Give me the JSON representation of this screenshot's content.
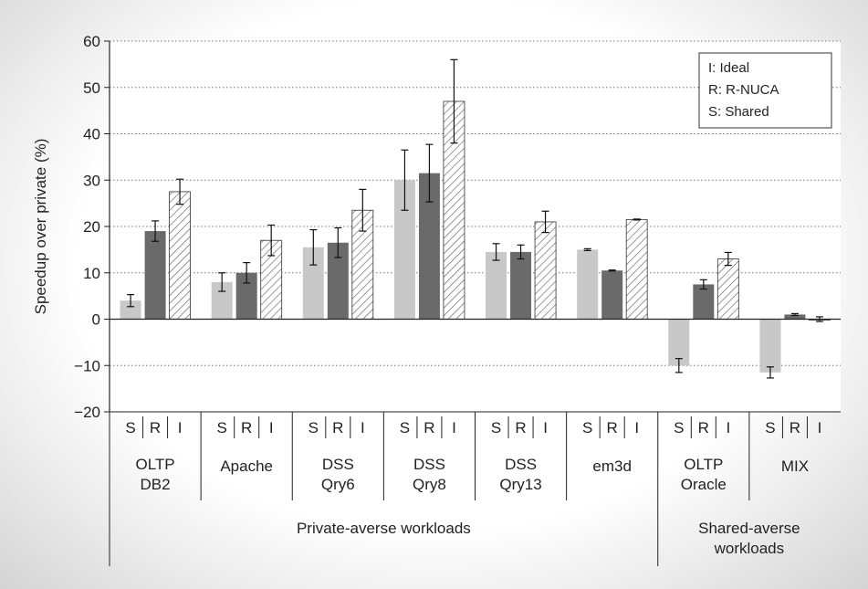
{
  "chart_data": {
    "type": "bar",
    "ylabel": "Speedup over private (%)",
    "ylim": [
      -20,
      60
    ],
    "yticks": [
      -20,
      -10,
      0,
      10,
      20,
      30,
      40,
      50,
      60
    ],
    "grid": true,
    "legend_position": "top-right",
    "legend": [
      "I: Ideal",
      "R: R-NUCA",
      "S: Shared"
    ],
    "bar_letters": [
      "S",
      "R",
      "I"
    ],
    "groups": [
      {
        "lines": [
          "OLTP",
          "DB2"
        ]
      },
      {
        "lines": [
          "Apache"
        ]
      },
      {
        "lines": [
          "DSS",
          "Qry6"
        ]
      },
      {
        "lines": [
          "DSS",
          "Qry8"
        ]
      },
      {
        "lines": [
          "DSS",
          "Qry13"
        ]
      },
      {
        "lines": [
          "em3d"
        ]
      },
      {
        "lines": [
          "OLTP",
          "Oracle"
        ]
      },
      {
        "lines": [
          "MIX"
        ]
      }
    ],
    "categories_super": [
      {
        "label": "Private-averse workloads",
        "lines": [
          "Private-averse workloads"
        ],
        "span": [
          0,
          5
        ]
      },
      {
        "label": "Shared-averse workloads",
        "lines": [
          "Shared-averse",
          "workloads"
        ],
        "span": [
          6,
          7
        ]
      }
    ],
    "series": [
      {
        "name": "Shared",
        "letter": "S",
        "color": "#c8c8c8",
        "pattern": "solid",
        "values": [
          4,
          8,
          15.5,
          30,
          14.5,
          15,
          -10,
          -11.5
        ],
        "error": [
          1.3,
          2,
          3.8,
          6.5,
          1.8,
          0.2,
          1.5,
          1.2
        ]
      },
      {
        "name": "R-NUCA",
        "letter": "R",
        "color": "#6a6a6a",
        "pattern": "solid",
        "values": [
          19,
          10,
          16.5,
          31.5,
          14.5,
          10.5,
          7.5,
          1
        ],
        "error": [
          2.2,
          2.2,
          3.2,
          6.2,
          1.5,
          0.1,
          1,
          0.2
        ]
      },
      {
        "name": "Ideal",
        "letter": "I",
        "color": "#ffffff",
        "pattern": "hatched",
        "values": [
          27.5,
          17,
          23.5,
          47,
          21,
          21.5,
          13,
          0
        ],
        "error": [
          2.7,
          3.3,
          4.5,
          9,
          2.3,
          0.1,
          1.4,
          0.5
        ]
      }
    ]
  }
}
